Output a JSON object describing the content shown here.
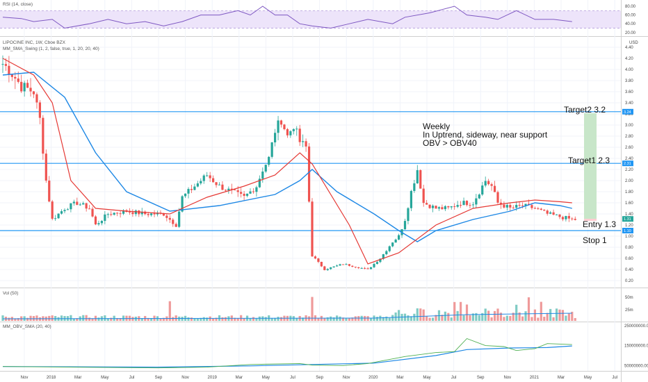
{
  "header": {
    "rsi_label": "RSI (14, close)",
    "symbol_label": "LIPOCINE INC, 1W, Cboe BZX",
    "sma_label": "MM_SMA_Swing (1, 2, false, true, 1, 20, 20, 40)",
    "vol_label": "Vol (50)",
    "obv_label": "MM_OBV_SMA (20, 40)",
    "currency": "USD"
  },
  "annotations": {
    "note_lines": [
      "Weekly",
      "In Uptrend, sideway, near support",
      "OBV > OBV40"
    ],
    "target2": "Target2 3.2",
    "target1": "Target1 2.3",
    "entry": "Entry 1.3",
    "stop": "Stop 1"
  },
  "colors": {
    "up": "#26a69a",
    "down": "#ef5350",
    "level": "#2196f3",
    "sma_fast": "#e53935",
    "sma_slow": "#1e88e5",
    "rsi": "#7e57c2",
    "rsi_band": "#ede4fa",
    "obv_fast": "#4caf50",
    "obv_slow": "#1e88e5",
    "target_zone": "#c8e6c9",
    "stop_zone": "#ffcdd2"
  },
  "chart_data": [
    {
      "type": "line",
      "name": "RSI (14, close)",
      "y_ticks": [
        "80.00",
        "60.00",
        "40.00",
        "20.00"
      ],
      "band": [
        30,
        70
      ],
      "x_weeks": [
        0,
        6,
        10,
        16,
        20,
        28,
        34,
        40,
        46,
        52,
        58,
        64,
        70,
        76,
        80,
        84,
        88,
        92,
        96,
        100,
        106,
        112,
        118,
        126,
        130,
        138,
        146,
        150,
        156,
        160,
        166,
        172,
        178,
        184
      ],
      "values": [
        55,
        52,
        45,
        50,
        30,
        40,
        50,
        40,
        45,
        35,
        45,
        60,
        60,
        70,
        60,
        80,
        60,
        60,
        40,
        35,
        30,
        40,
        50,
        40,
        55,
        65,
        80,
        60,
        55,
        50,
        70,
        50,
        50,
        45
      ]
    },
    {
      "type": "candlestick",
      "name": "LIPOCINE INC, 1W, Cboe BZX",
      "y_ticks": [
        "4.40",
        "4.20",
        "4.00",
        "3.80",
        "3.60",
        "3.40",
        "3.20",
        "3.00",
        "2.80",
        "2.60",
        "2.40",
        "2.20",
        "2.00",
        "1.80",
        "1.60",
        "1.40",
        "1.20",
        "1.00",
        "0.80",
        "0.60",
        "0.40",
        "0.20"
      ],
      "y_range": [
        0.1,
        4.5
      ],
      "x_ticks": [
        "Nov",
        "2018",
        "Mar",
        "May",
        "Jul",
        "Sep",
        "Nov",
        "2019",
        "Mar",
        "May",
        "Jul",
        "Sep",
        "Nov",
        "2020",
        "Mar",
        "May",
        "Jul",
        "Sep",
        "Nov",
        "2021",
        "Mar",
        "May",
        "Jul"
      ],
      "levels": [
        {
          "value": 3.24,
          "label": "3.24"
        },
        {
          "value": 2.31,
          "label": "2.31"
        },
        {
          "value": 1.1,
          "label": "1.10"
        }
      ],
      "last_price": "1.31",
      "anchors_week_close": [
        [
          0,
          4.1
        ],
        [
          2,
          4.0
        ],
        [
          6,
          3.7
        ],
        [
          10,
          3.6
        ],
        [
          12,
          3.1
        ],
        [
          14,
          2.0
        ],
        [
          16,
          1.3
        ],
        [
          20,
          1.5
        ],
        [
          24,
          1.6
        ],
        [
          28,
          1.5
        ],
        [
          30,
          1.2
        ],
        [
          34,
          1.4
        ],
        [
          40,
          1.45
        ],
        [
          46,
          1.4
        ],
        [
          52,
          1.4
        ],
        [
          54,
          1.3
        ],
        [
          56,
          1.2
        ],
        [
          58,
          1.7
        ],
        [
          62,
          1.9
        ],
        [
          66,
          2.1
        ],
        [
          70,
          1.9
        ],
        [
          74,
          1.8
        ],
        [
          78,
          1.7
        ],
        [
          82,
          1.9
        ],
        [
          84,
          2.2
        ],
        [
          86,
          2.4
        ],
        [
          88,
          2.9
        ],
        [
          90,
          3.1
        ],
        [
          92,
          2.8
        ],
        [
          94,
          3.0
        ],
        [
          96,
          2.7
        ],
        [
          98,
          2.6
        ],
        [
          100,
          0.65
        ],
        [
          104,
          0.4
        ],
        [
          110,
          0.5
        ],
        [
          114,
          0.45
        ],
        [
          118,
          0.4
        ],
        [
          122,
          0.6
        ],
        [
          126,
          0.9
        ],
        [
          128,
          1.0
        ],
        [
          130,
          1.3
        ],
        [
          132,
          1.8
        ],
        [
          134,
          2.2
        ],
        [
          136,
          1.6
        ],
        [
          140,
          1.5
        ],
        [
          144,
          1.5
        ],
        [
          148,
          1.6
        ],
        [
          152,
          1.6
        ],
        [
          156,
          2.0
        ],
        [
          158,
          1.9
        ],
        [
          160,
          1.6
        ],
        [
          164,
          1.5
        ],
        [
          168,
          1.55
        ],
        [
          172,
          1.5
        ],
        [
          176,
          1.4
        ],
        [
          180,
          1.35
        ],
        [
          184,
          1.3
        ]
      ],
      "sma_fast": [
        [
          0,
          4.2
        ],
        [
          10,
          3.9
        ],
        [
          16,
          3.4
        ],
        [
          22,
          2.0
        ],
        [
          30,
          1.5
        ],
        [
          40,
          1.45
        ],
        [
          54,
          1.4
        ],
        [
          66,
          1.7
        ],
        [
          78,
          1.9
        ],
        [
          88,
          2.1
        ],
        [
          96,
          2.5
        ],
        [
          100,
          2.3
        ],
        [
          112,
          1.2
        ],
        [
          118,
          0.5
        ],
        [
          128,
          0.7
        ],
        [
          140,
          1.2
        ],
        [
          152,
          1.5
        ],
        [
          164,
          1.6
        ],
        [
          172,
          1.65
        ],
        [
          180,
          1.62
        ],
        [
          184,
          1.6
        ]
      ],
      "sma_slow": [
        [
          0,
          3.9
        ],
        [
          10,
          3.95
        ],
        [
          20,
          3.5
        ],
        [
          30,
          2.5
        ],
        [
          40,
          1.8
        ],
        [
          54,
          1.45
        ],
        [
          70,
          1.55
        ],
        [
          88,
          1.75
        ],
        [
          96,
          2.0
        ],
        [
          100,
          2.2
        ],
        [
          108,
          1.8
        ],
        [
          120,
          1.4
        ],
        [
          128,
          1.1
        ],
        [
          134,
          0.9
        ],
        [
          140,
          1.1
        ],
        [
          152,
          1.3
        ],
        [
          164,
          1.45
        ],
        [
          172,
          1.6
        ],
        [
          180,
          1.55
        ],
        [
          184,
          1.5
        ]
      ]
    },
    {
      "type": "bar",
      "name": "Vol (50)",
      "y_ticks": [
        "50m",
        "25m"
      ],
      "note": "weekly volume bars with 50-week average"
    },
    {
      "type": "line",
      "name": "MM_OBV_SMA (20, 40)",
      "y_ticks": [
        "250000000.00",
        "150000000.00",
        "50000000.00"
      ],
      "obv_fast": [
        [
          0,
          45000000
        ],
        [
          50,
          38000000
        ],
        [
          66,
          42000000
        ],
        [
          80,
          55000000
        ],
        [
          96,
          60000000
        ],
        [
          100,
          52000000
        ],
        [
          110,
          50000000
        ],
        [
          118,
          60000000
        ],
        [
          130,
          95000000
        ],
        [
          140,
          115000000
        ],
        [
          146,
          120000000
        ],
        [
          150,
          185000000
        ],
        [
          156,
          150000000
        ],
        [
          162,
          145000000
        ],
        [
          166,
          125000000
        ],
        [
          172,
          135000000
        ],
        [
          176,
          160000000
        ],
        [
          184,
          155000000
        ]
      ],
      "obv_slow": [
        [
          0,
          45000000
        ],
        [
          50,
          42000000
        ],
        [
          80,
          48000000
        ],
        [
          100,
          55000000
        ],
        [
          120,
          62000000
        ],
        [
          140,
          100000000
        ],
        [
          150,
          130000000
        ],
        [
          164,
          138000000
        ],
        [
          176,
          140000000
        ],
        [
          184,
          148000000
        ]
      ]
    }
  ]
}
